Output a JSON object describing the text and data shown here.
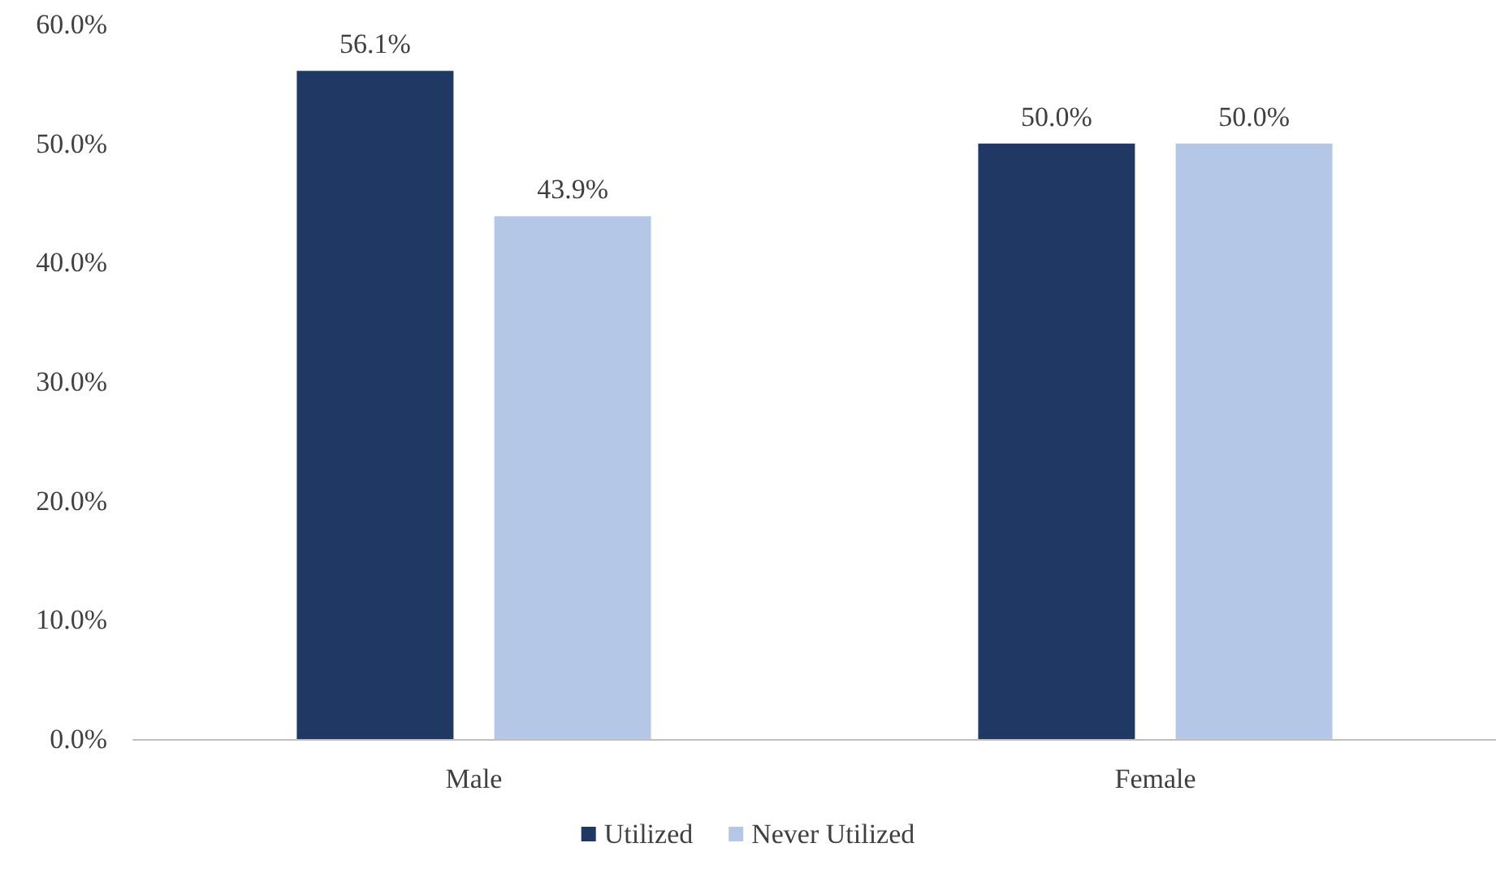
{
  "chart_data": {
    "type": "bar",
    "categories": [
      "Male",
      "Female"
    ],
    "series": [
      {
        "name": "Utilized",
        "color": "#203864",
        "values": [
          56.1,
          50.0
        ],
        "value_labels": [
          "56.1%",
          "50.0%"
        ]
      },
      {
        "name": "Never Utilized",
        "color": "#b4c7e7",
        "values": [
          43.9,
          50.0
        ],
        "value_labels": [
          "43.9%",
          "50.0%"
        ]
      }
    ],
    "ylim": [
      0,
      60
    ],
    "yticks": [
      {
        "value": 0,
        "label": "0.0%"
      },
      {
        "value": 10,
        "label": "10.0%"
      },
      {
        "value": 20,
        "label": "20.0%"
      },
      {
        "value": 30,
        "label": "30.0%"
      },
      {
        "value": 40,
        "label": "40.0%"
      },
      {
        "value": 50,
        "label": "50.0%"
      },
      {
        "value": 60,
        "label": "60.0%"
      }
    ],
    "grid": false,
    "legend": "bottom"
  }
}
